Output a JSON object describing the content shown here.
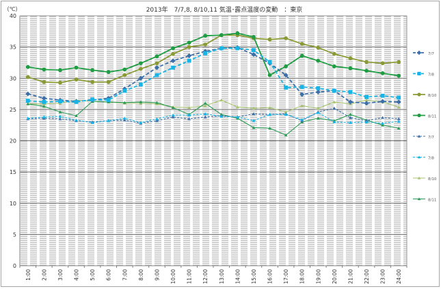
{
  "chart_data": {
    "type": "line",
    "title": "2013年　7/7,8, 8/10,11  気温･露点温度の変動　：東京",
    "ylabel": "（℃）",
    "xlabel": "",
    "ylim": [
      0,
      40
    ],
    "yticks": [
      0,
      5,
      10,
      15,
      20,
      25,
      30,
      35,
      40
    ],
    "grid": "horizontal",
    "legend_position": "right",
    "categories": [
      "1:00",
      "2:00",
      "3:00",
      "4:00",
      "5:00",
      "6:00",
      "7:00",
      "8:00",
      "9:00",
      "10:00",
      "11:00",
      "12:00",
      "13:00",
      "14:00",
      "15:00",
      "16:00",
      "17:00",
      "18:00",
      "19:00",
      "20:00",
      "21:00",
      "22:00",
      "23:00",
      "24:00"
    ],
    "series": [
      {
        "name": "7/7",
        "kind": "temp",
        "color": "#3c6fa8",
        "dashed": true,
        "marker": "diamond",
        "values": [
          27.5,
          26.8,
          26.5,
          26.3,
          26.5,
          26.8,
          28.3,
          30.0,
          31.7,
          32.8,
          33.6,
          34.3,
          34.8,
          34.9,
          33.8,
          32.4,
          30.5,
          27.4,
          27.8,
          28.0,
          26.2,
          26.0,
          26.3,
          26.2
        ]
      },
      {
        "name": "7/8",
        "kind": "temp",
        "color": "#17b5e6",
        "dashed": true,
        "marker": "square",
        "values": [
          26.4,
          26.2,
          26.3,
          26.2,
          26.6,
          26.5,
          28.0,
          29.0,
          30.5,
          31.7,
          32.8,
          34.0,
          34.8,
          34.8,
          34.5,
          32.6,
          28.5,
          28.6,
          28.4,
          28.0,
          27.8,
          27.0,
          27.2,
          26.9
        ]
      },
      {
        "name": "8/10",
        "kind": "temp",
        "color": "#8a9b36",
        "dashed": false,
        "marker": "circle",
        "values": [
          30.2,
          29.4,
          29.3,
          29.8,
          29.4,
          29.4,
          30.5,
          31.5,
          32.4,
          33.9,
          35.0,
          35.4,
          36.9,
          36.9,
          36.4,
          36.2,
          36.4,
          35.5,
          34.9,
          33.9,
          33.2,
          32.6,
          32.4,
          32.6
        ]
      },
      {
        "name": "8/11",
        "kind": "temp",
        "color": "#1f9d43",
        "dashed": false,
        "marker": "circle",
        "values": [
          31.8,
          31.4,
          31.3,
          31.7,
          31.3,
          31.0,
          31.4,
          32.4,
          33.5,
          34.8,
          35.7,
          36.8,
          36.9,
          37.2,
          36.6,
          30.5,
          31.9,
          33.6,
          32.8,
          31.9,
          31.6,
          31.2,
          30.8,
          30.4
        ]
      },
      {
        "name": "7/7",
        "kind": "dew",
        "color": "#3c6fa8",
        "dashed": true,
        "marker": "triangle",
        "values": [
          23.5,
          23.6,
          23.5,
          23.2,
          23.0,
          23.2,
          23.3,
          22.8,
          23.2,
          23.8,
          23.5,
          23.8,
          24.0,
          23.8,
          24.3,
          24.2,
          24.3,
          23.2,
          24.6,
          25.2,
          23.7,
          23.2,
          23.7,
          23.5
        ]
      },
      {
        "name": "7/8",
        "kind": "dew",
        "color": "#17b5e6",
        "dashed": true,
        "marker": "triangle",
        "values": [
          23.6,
          23.8,
          23.9,
          23.3,
          22.9,
          23.2,
          23.6,
          22.9,
          23.5,
          24.1,
          24.1,
          24.3,
          23.9,
          23.8,
          23.2,
          24.2,
          24.2,
          23.4,
          24.5,
          23.0,
          22.9,
          23.0,
          22.8,
          23.1
        ]
      },
      {
        "name": "8/10",
        "kind": "dew",
        "color": "#a8c472",
        "dashed": false,
        "marker": "triangle",
        "values": [
          25.9,
          25.9,
          26.0,
          26.5,
          26.3,
          26.2,
          26.0,
          26.0,
          25.9,
          25.4,
          25.3,
          25.6,
          26.5,
          25.4,
          25.2,
          25.3,
          24.6,
          25.6,
          25.2,
          26.2,
          25.9,
          26.5,
          26.2,
          25.4
        ]
      },
      {
        "name": "8/11",
        "kind": "dew",
        "color": "#2b9b55",
        "dashed": false,
        "marker": "triangle",
        "values": [
          25.9,
          25.5,
          24.6,
          24.0,
          26.3,
          26.2,
          26.1,
          26.2,
          26.1,
          25.3,
          24.2,
          26.0,
          24.2,
          23.6,
          22.1,
          22.0,
          20.9,
          23.0,
          23.6,
          23.2,
          24.2,
          23.3,
          22.5,
          22.0
        ]
      }
    ]
  }
}
